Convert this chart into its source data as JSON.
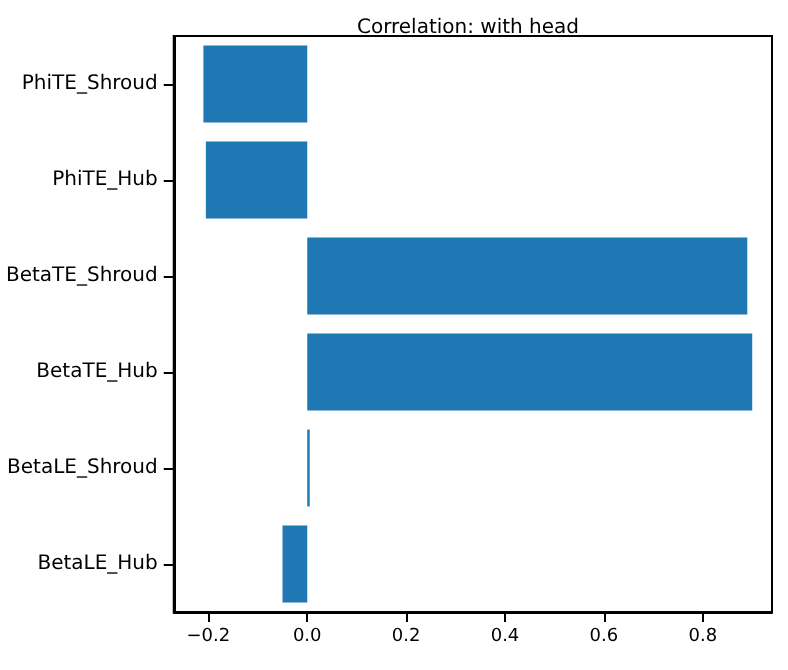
{
  "chart_data": {
    "type": "bar",
    "orientation": "horizontal",
    "title": "Correlation: with head",
    "categories": [
      "PhiTE_Shroud",
      "PhiTE_Hub",
      "BetaTE_Shroud",
      "BetaTE_Hub",
      "BetaLE_Shroud",
      "BetaLE_Hub"
    ],
    "values": [
      -0.21,
      -0.205,
      0.89,
      0.9,
      0.005,
      -0.05
    ],
    "color": "#1f77b4",
    "xlim": [
      -0.27,
      0.94
    ],
    "xticks": [
      {
        "value": -0.2,
        "label": "−0.2"
      },
      {
        "value": 0,
        "label": "0.0"
      },
      {
        "value": 0.2,
        "label": "0.2"
      },
      {
        "value": 0.4,
        "label": "0.4"
      },
      {
        "value": 0.6,
        "label": "0.6"
      },
      {
        "value": 0.8,
        "label": "0.8"
      }
    ]
  }
}
